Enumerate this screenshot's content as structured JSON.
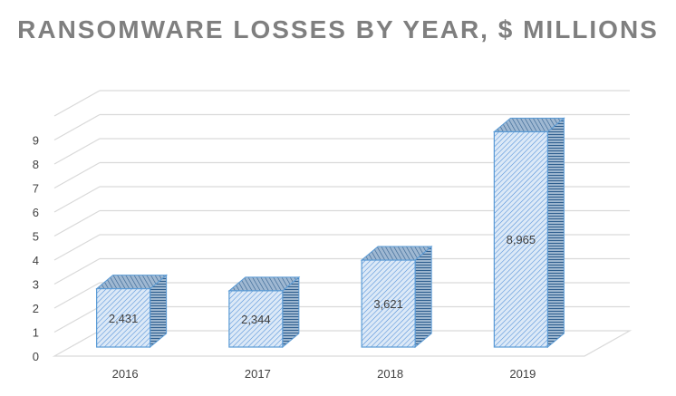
{
  "chart_data": {
    "type": "bar",
    "title": "RANSOMWARE LOSSES BY YEAR, $ MILLIONS",
    "categories": [
      "2016",
      "2017",
      "2018",
      "2019"
    ],
    "values": [
      2.431,
      2.344,
      3.621,
      8.965
    ],
    "data_labels": [
      "2,431",
      "2,344",
      "3,621",
      "8,965"
    ],
    "ylim": [
      0,
      9
    ],
    "yticks": [
      "0",
      "1",
      "2",
      "3",
      "4",
      "5",
      "6",
      "7",
      "8",
      "9"
    ],
    "xlabel": "",
    "ylabel": "",
    "grid": true,
    "legend": "none",
    "style": "3d-column",
    "colors": {
      "bar_fill": "#dce9f7",
      "bar_hatch": "#4f8ed8",
      "bar_edge": "#5b9bd5",
      "bar_side_hatch": "#2f5f8f",
      "grid": "#d9d9d9",
      "text": "#404040",
      "title": "#7f7f7f"
    }
  }
}
